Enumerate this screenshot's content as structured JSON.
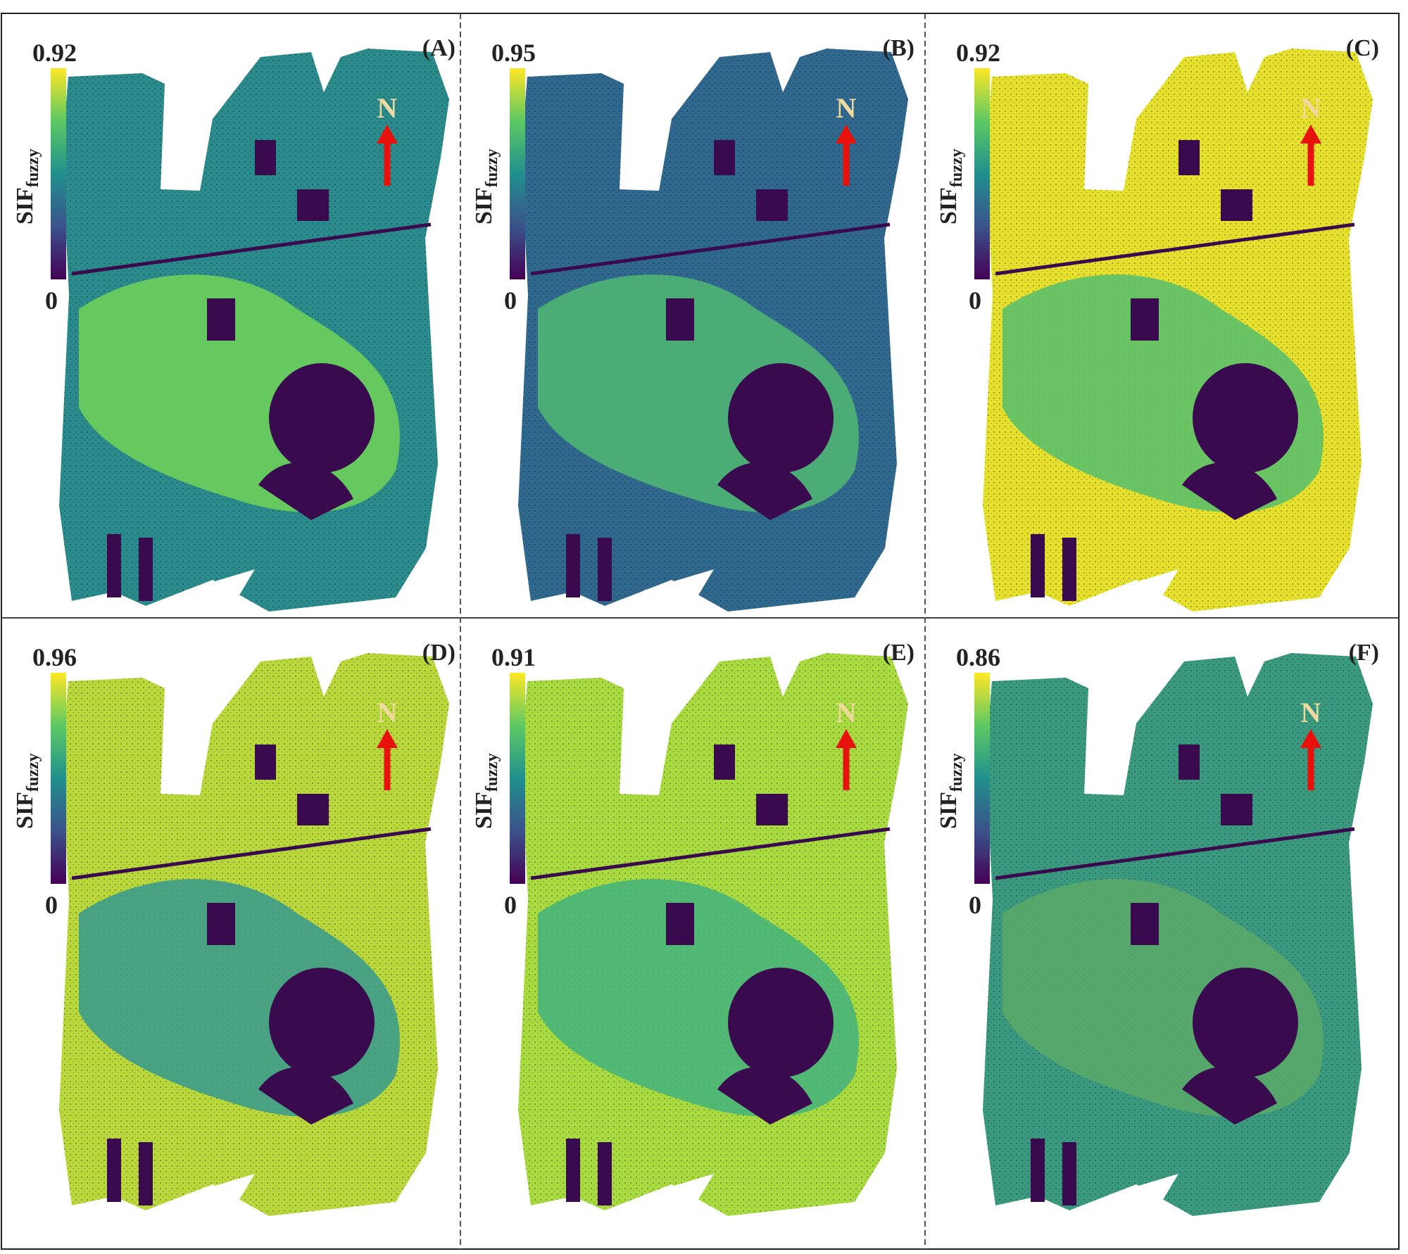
{
  "panels": [
    {
      "label": "(A)",
      "colorbar_max": 0.92,
      "colorbar_min": 0
    },
    {
      "label": "(B)",
      "colorbar_max": 0.95,
      "colorbar_min": 0
    },
    {
      "label": "(C)",
      "colorbar_max": 0.92,
      "colorbar_min": 0
    },
    {
      "label": "(D)",
      "colorbar_max": 0.96,
      "colorbar_min": 0
    },
    {
      "label": "(E)",
      "colorbar_max": 0.91,
      "colorbar_min": 0
    },
    {
      "label": "(F)",
      "colorbar_max": 0.86,
      "colorbar_min": 0
    }
  ],
  "colorbar_title": {
    "text": "SIF",
    "subscript": "fuzzy"
  },
  "north_label": "N"
}
